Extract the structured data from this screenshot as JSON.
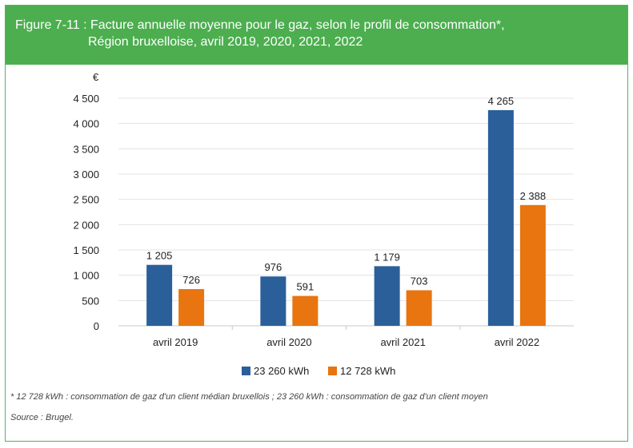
{
  "header": {
    "title_line1": "Figure 7-11 : Facture annuelle moyenne pour le gaz, selon le profil de consommation*,",
    "title_line2": "Région bruxelloise, avril 2019, 2020, 2021, 2022"
  },
  "chart_data": {
    "type": "bar",
    "title": "Facture annuelle moyenne pour le gaz, selon le profil de consommation*, Région bruxelloise, avril 2019, 2020, 2021, 2022",
    "ylabel": "€",
    "xlabel": "",
    "categories": [
      "avril 2019",
      "avril 2020",
      "avril 2021",
      "avril 2022"
    ],
    "series": [
      {
        "name": "23 260 kWh",
        "values": [
          1205,
          976,
          1179,
          4265
        ],
        "labels": [
          "1 205",
          "976",
          "1 179",
          "4 265"
        ],
        "color": "#2a5f9a"
      },
      {
        "name": "12 728 kWh",
        "values": [
          726,
          591,
          703,
          2388
        ],
        "labels": [
          "726",
          "591",
          "703",
          "2 388"
        ],
        "color": "#e8750f"
      }
    ],
    "ylim": [
      0,
      4500
    ],
    "yticks": [
      0,
      500,
      1000,
      1500,
      2000,
      2500,
      3000,
      3500,
      4000,
      4500
    ],
    "ytick_labels": [
      "0",
      "500",
      "1 000",
      "1 500",
      "2 000",
      "2 500",
      "3 000",
      "3 500",
      "4 000",
      "4 500"
    ],
    "grid": true,
    "legend": "bottom-center"
  },
  "footnote": "* 12 728 kWh : consommation de gaz d'un client médian bruxellois ; 23 260 kWh : consommation de gaz d'un client moyen",
  "source": "Source : Brugel.",
  "colors": {
    "header_bg": "#4cae4f",
    "grid": "#e3e3e3"
  }
}
